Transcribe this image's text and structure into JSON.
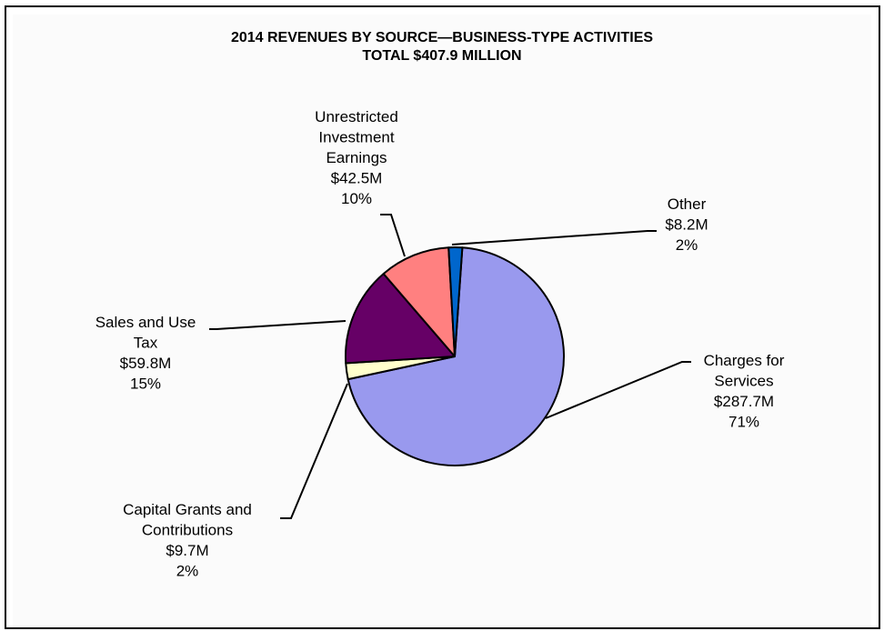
{
  "chart_data": {
    "type": "pie",
    "title": "2014 REVENUES BY SOURCE—BUSINESS-TYPE ACTIVITIES",
    "subtitle": "TOTAL $407.9 MILLION",
    "slices": [
      {
        "label_lines": [
          "Charges for",
          "Services"
        ],
        "amount": "$287.7M",
        "percent": "71%",
        "value": 287.7,
        "color": "#9999ee"
      },
      {
        "label_lines": [
          "Capital Grants and",
          "Contributions"
        ],
        "amount": "$9.7M",
        "percent": "2%",
        "value": 9.7,
        "color": "#ffffcc"
      },
      {
        "label_lines": [
          "Sales and Use",
          "Tax"
        ],
        "amount": "$59.8M",
        "percent": "15%",
        "value": 59.8,
        "color": "#660066"
      },
      {
        "label_lines": [
          "Unrestricted",
          "Investment",
          "Earnings"
        ],
        "amount": "$42.5M",
        "percent": "10%",
        "value": 42.5,
        "color": "#ff8080"
      },
      {
        "label_lines": [
          "Other"
        ],
        "amount": "$8.2M",
        "percent": "2%",
        "value": 8.2,
        "color": "#0066cc"
      }
    ]
  }
}
